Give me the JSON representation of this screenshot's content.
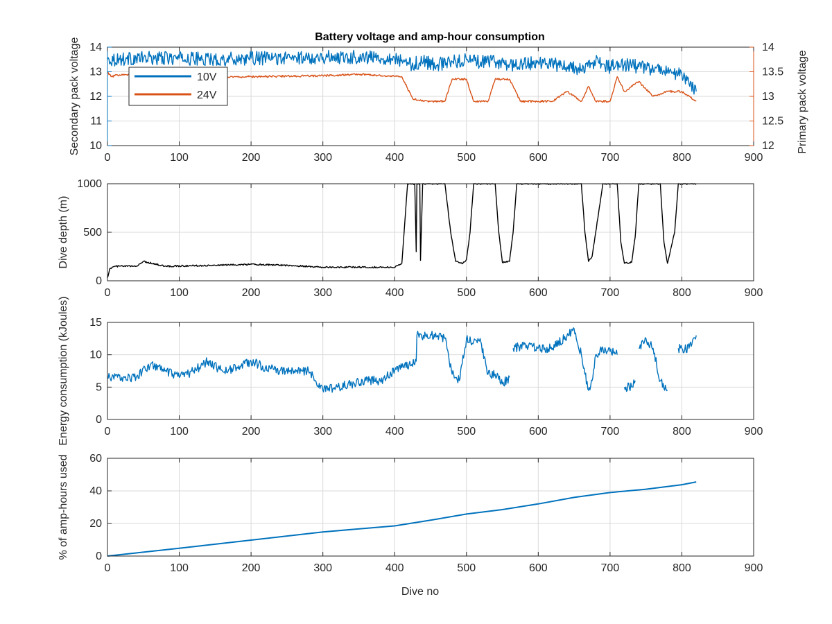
{
  "figure_title": "Battery voltage and amp-hour consumption",
  "colors": {
    "blue": "#0072bd",
    "orange": "#d95319",
    "black": "#000000",
    "axis": "#262626",
    "grid": "#d9d9d9"
  },
  "chart_data": [
    {
      "type": "line",
      "title": "Battery voltage and amp-hour consumption",
      "xlabel": "",
      "ylabel": "Secondary pack voltage",
      "ylabel_right": "Primary pack voltage",
      "xlim": [
        0,
        900
      ],
      "ylim": [
        10,
        14
      ],
      "ylim_right": [
        12,
        14
      ],
      "xticks": [
        0,
        100,
        200,
        300,
        400,
        500,
        600,
        700,
        800,
        900
      ],
      "yticks": [
        10,
        11,
        12,
        13,
        14
      ],
      "yticks_right": [
        12,
        12.5,
        13,
        13.5,
        14
      ],
      "grid": true,
      "legend_position": "top-left",
      "series": [
        {
          "name": "10V",
          "axis": "left",
          "color": "#0072bd",
          "noise": 0.28,
          "x": [
            0,
            50,
            100,
            150,
            200,
            250,
            300,
            350,
            400,
            420,
            440,
            460,
            480,
            500,
            520,
            540,
            560,
            580,
            600,
            620,
            640,
            660,
            680,
            700,
            720,
            740,
            760,
            780,
            800,
            810,
            820
          ],
          "y": [
            13.5,
            13.55,
            13.55,
            13.5,
            13.55,
            13.55,
            13.6,
            13.6,
            13.55,
            13.3,
            13.4,
            13.3,
            13.4,
            13.5,
            13.4,
            13.4,
            13.3,
            13.3,
            13.4,
            13.3,
            13.2,
            13.1,
            13.4,
            13.2,
            13.3,
            13.2,
            13.1,
            13.0,
            12.9,
            12.5,
            12.2
          ]
        },
        {
          "name": "24V",
          "axis": "right",
          "color": "#d95319",
          "noise": 0.02,
          "x": [
            0,
            5,
            20,
            100,
            200,
            300,
            350,
            410,
            425,
            440,
            470,
            480,
            500,
            510,
            530,
            540,
            560,
            575,
            600,
            620,
            640,
            660,
            670,
            680,
            700,
            710,
            720,
            740,
            760,
            780,
            800,
            820
          ],
          "y": [
            13.5,
            13.4,
            13.45,
            13.38,
            13.4,
            13.42,
            13.45,
            13.4,
            12.95,
            12.9,
            12.9,
            13.35,
            13.35,
            12.9,
            12.9,
            13.35,
            13.35,
            12.9,
            12.9,
            12.9,
            13.1,
            12.9,
            13.2,
            12.9,
            12.9,
            13.4,
            13.1,
            13.3,
            13.0,
            13.1,
            13.1,
            12.9
          ]
        }
      ]
    },
    {
      "type": "line",
      "title": "",
      "xlabel": "",
      "ylabel": "Dive depth (m)",
      "xlim": [
        0,
        900
      ],
      "ylim": [
        1000,
        0
      ],
      "y_reversed": true,
      "xticks": [
        0,
        100,
        200,
        300,
        400,
        500,
        600,
        700,
        800,
        900
      ],
      "yticks": [
        0,
        500,
        1000
      ],
      "grid": true,
      "series": [
        {
          "name": "",
          "color": "#000000",
          "noise": 8,
          "x": [
            0,
            3,
            10,
            40,
            50,
            80,
            150,
            200,
            250,
            300,
            350,
            400,
            410,
            418,
            428,
            430,
            431,
            435,
            436,
            439,
            440,
            470,
            478,
            485,
            495,
            500,
            505,
            510,
            540,
            545,
            550,
            560,
            565,
            570,
            600,
            650,
            660,
            665,
            670,
            675,
            680,
            690,
            710,
            715,
            720,
            730,
            735,
            740,
            770,
            775,
            780,
            790,
            795,
            820
          ],
          "y": [
            30,
            120,
            150,
            150,
            200,
            150,
            160,
            170,
            160,
            140,
            140,
            140,
            180,
            1000,
            1000,
            300,
            1000,
            1000,
            210,
            1000,
            1000,
            1000,
            500,
            200,
            180,
            220,
            500,
            1000,
            1000,
            500,
            190,
            200,
            500,
            1000,
            1000,
            1000,
            1000,
            500,
            200,
            250,
            500,
            1000,
            1000,
            400,
            180,
            190,
            450,
            1000,
            1000,
            400,
            180,
            500,
            1000,
            1000
          ]
        }
      ]
    },
    {
      "type": "line",
      "title": "",
      "xlabel": "",
      "ylabel": "Energy consumption (kJoules)",
      "xlim": [
        0,
        900
      ],
      "ylim": [
        0,
        15
      ],
      "xticks": [
        0,
        100,
        200,
        300,
        400,
        500,
        600,
        700,
        800,
        900
      ],
      "yticks": [
        0,
        5,
        10,
        15
      ],
      "grid": true,
      "series": [
        {
          "name": "",
          "color": "#0072bd",
          "noise": 0.7,
          "x": [
            0,
            20,
            40,
            60,
            80,
            100,
            120,
            140,
            160,
            180,
            200,
            220,
            240,
            260,
            280,
            290,
            300,
            320,
            340,
            360,
            380,
            400,
            410,
            420,
            430,
            431,
            440,
            460,
            470,
            480,
            490,
            500,
            510,
            520,
            530,
            540,
            550,
            560,
            561,
            565,
            580,
            600,
            620,
            640,
            650,
            660,
            665,
            670,
            675,
            680,
            690,
            700,
            710,
            711,
            720,
            730,
            735,
            736,
            740,
            750,
            760,
            770,
            780,
            781,
            795,
            800,
            810,
            820
          ],
          "y": [
            6.5,
            6.5,
            6.5,
            8.5,
            7.5,
            6.5,
            7.5,
            9,
            7.5,
            8,
            9,
            8,
            7.5,
            7.5,
            7.5,
            6,
            4.5,
            5,
            5.5,
            6,
            6,
            7.5,
            8,
            8.5,
            9,
            13,
            13,
            13,
            12.5,
            7,
            6,
            12.5,
            12,
            12,
            7,
            7,
            5.5,
            6.5,
            null,
            11,
            11.5,
            11,
            11,
            13,
            14,
            10,
            7,
            4.5,
            6,
            10,
            11,
            10.5,
            10,
            null,
            5,
            5,
            6,
            null,
            11,
            12.5,
            11,
            6,
            4.5,
            null,
            11,
            11,
            11,
            13
          ]
        }
      ]
    },
    {
      "type": "line",
      "title": "",
      "xlabel": "Dive no",
      "ylabel": "% of amp-hours used",
      "xlim": [
        0,
        900
      ],
      "ylim": [
        0,
        60
      ],
      "xticks": [
        0,
        100,
        200,
        300,
        400,
        500,
        600,
        700,
        800,
        900
      ],
      "yticks": [
        0,
        20,
        40,
        60
      ],
      "grid": true,
      "series": [
        {
          "name": "",
          "color": "#0072bd",
          "noise": 0,
          "x": [
            0,
            100,
            200,
            300,
            400,
            450,
            500,
            550,
            600,
            650,
            700,
            750,
            800,
            820
          ],
          "y": [
            0,
            4.8,
            9.8,
            14.8,
            18.5,
            22,
            25.8,
            28.5,
            32,
            36,
            39,
            41,
            43.8,
            45.5
          ]
        }
      ]
    }
  ]
}
